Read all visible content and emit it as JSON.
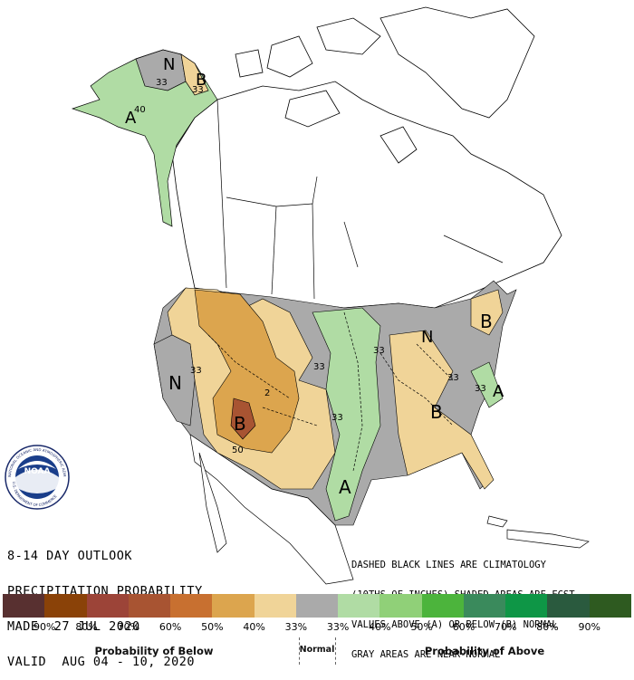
{
  "title": {
    "line1": "8-14 DAY OUTLOOK",
    "line2": "PRECIPITATION PROBABILITY",
    "line3": "MADE  27 JUL 2020",
    "line4": "VALID  AUG 04 - 10, 2020"
  },
  "notes": {
    "line1": "DASHED BLACK LINES ARE CLIMATOLOGY",
    "line2": "(10THS OF INCHES) SHADED AREAS ARE FCST",
    "line3": "VALUES ABOVE (A) OR BELOW (B) NORMAL",
    "line4": "GRAY AREAS ARE NEAR-NORMAL"
  },
  "legend": {
    "colors": [
      "#583030",
      "#8a4208",
      "#9c4438",
      "#a85432",
      "#c87030",
      "#dca54e",
      "#f0d498",
      "#aaaaaa",
      "#b0dca4",
      "#90d078",
      "#4cb43c",
      "#3a8a5c",
      "#0e9646",
      "#2a5a3e",
      "#2e5a20"
    ],
    "labels": [
      "90%",
      "80%",
      "70%",
      "60%",
      "50%",
      "40%",
      "33%",
      "33%",
      "40%",
      "50%",
      "60%",
      "70%",
      "80%",
      "90%"
    ],
    "below_title": "Probability of Below",
    "normal_title": "Normal",
    "above_title": "Probability of Above"
  },
  "map_labels": {
    "alaska_n": "N",
    "alaska_b": "B",
    "alaska_a": "A",
    "ak_33a": "33",
    "ak_33b": "33",
    "ak_40": "40",
    "west_n": "N",
    "west_33": "33",
    "sw_b": "B",
    "sw_50": "50",
    "sw_2": "2",
    "plains_33a": "33",
    "plains_33b": "33",
    "south_a": "A",
    "lakes_n": "N",
    "lakes_33": "33",
    "se_b": "B",
    "se_33": "33",
    "ne_b": "B",
    "ma_a": "A",
    "ma_33": "33"
  },
  "logo": {
    "text": "NOAA",
    "ring_top": "NATIONAL OCEANIC AND ATMOSPHERIC ADMINISTRATION",
    "ring_bottom": "U.S. DEPARTMENT OF COMMERCE"
  }
}
